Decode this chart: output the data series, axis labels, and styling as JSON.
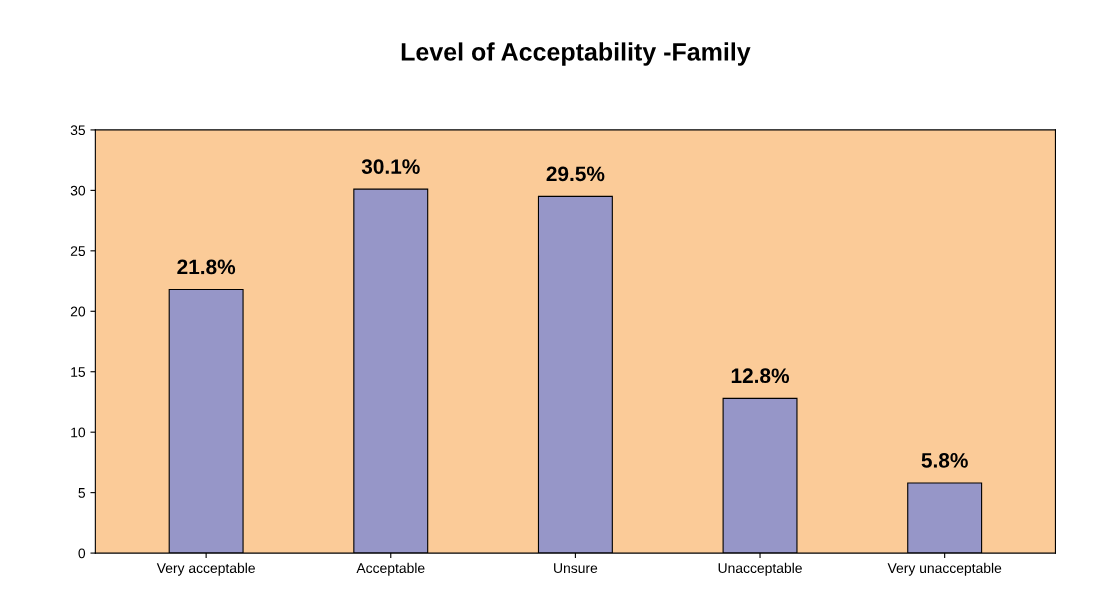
{
  "chart_data": {
    "type": "bar",
    "title": "Level of Acceptability -Family",
    "categories": [
      "Very acceptable",
      "Acceptable",
      "Unsure",
      "Unacceptable",
      "Very unacceptable"
    ],
    "values": [
      21.8,
      30.1,
      29.5,
      12.8,
      5.8
    ],
    "value_labels": [
      "21.8%",
      "30.1%",
      "29.5%",
      "12.8%",
      "5.8%"
    ],
    "color": "#9696c8",
    "ylim": [
      0,
      35
    ],
    "yticks": [
      0,
      5,
      10,
      15,
      20,
      25,
      30,
      35
    ],
    "grid": false,
    "legend": false
  }
}
